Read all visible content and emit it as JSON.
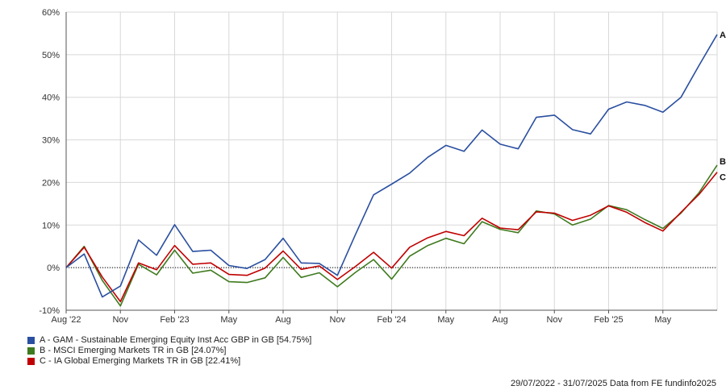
{
  "chart_data": {
    "type": "line",
    "ylim": [
      -10,
      60
    ],
    "y_ticks": [
      "-10%",
      "0%",
      "10%",
      "20%",
      "30%",
      "40%",
      "50%",
      "60%"
    ],
    "x_tick_labels": [
      "Aug '22",
      "Nov",
      "Feb '23",
      "May",
      "Aug",
      "Nov",
      "Feb '24",
      "May",
      "Aug",
      "Nov",
      "Feb '25",
      "May"
    ],
    "x_tick_index": [
      0,
      6,
      12,
      18,
      24,
      30,
      36,
      42,
      48,
      54,
      60,
      66
    ],
    "x_count": 73,
    "grid": true,
    "zero_line": "dotted",
    "series": [
      {
        "name": "A - GAM - Sustainable Emerging Equity Inst Acc GBP in GB [54.75%]",
        "end_label": "A",
        "color": "#2a4fa0",
        "values": [
          0,
          3.2,
          -6.9,
          -4.3,
          6.5,
          2.9,
          10.1,
          3.8,
          4.1,
          0.5,
          -0.2,
          1.9,
          6.9,
          1.1,
          1.0,
          -1.8,
          7.8,
          17.1,
          19.6,
          22.2,
          25.9,
          28.7,
          27.3,
          32.3,
          29.0,
          27.9,
          35.3,
          35.8,
          32.4,
          31.4,
          37.2,
          38.9,
          38.1,
          36.5,
          40.0,
          47.5,
          54.75
        ],
        "x_index": [
          0,
          2,
          4,
          6,
          8,
          10,
          12,
          14,
          16,
          18,
          20,
          22,
          24,
          26,
          28,
          30,
          32,
          34,
          36,
          38,
          40,
          42,
          44,
          46,
          48,
          50,
          52,
          54,
          56,
          58,
          60,
          62,
          64,
          66,
          68,
          70,
          72
        ]
      },
      {
        "name": "B - MSCI Emerging Markets TR in GB [24.07%]",
        "end_label": "B",
        "color": "#3f7a1e",
        "values": [
          0,
          5.0,
          -3.0,
          -9.0,
          0.8,
          -1.7,
          4.1,
          -1.3,
          -0.6,
          -3.3,
          -3.5,
          -2.4,
          2.4,
          -2.3,
          -1.2,
          -4.5,
          -1.1,
          1.9,
          -2.7,
          2.7,
          5.2,
          6.9,
          5.6,
          10.8,
          9.0,
          8.2,
          13.3,
          12.6,
          10.0,
          11.4,
          14.6,
          13.6,
          11.3,
          9.2,
          12.8,
          17.6,
          24.07
        ],
        "x_index": [
          0,
          2,
          4,
          6,
          8,
          10,
          12,
          14,
          16,
          18,
          20,
          22,
          24,
          26,
          28,
          30,
          32,
          34,
          36,
          38,
          40,
          42,
          44,
          46,
          48,
          50,
          52,
          54,
          56,
          58,
          60,
          62,
          64,
          66,
          68,
          70,
          72
        ]
      },
      {
        "name": "C - IA Global Emerging Markets TR in GB [22.41%]",
        "end_label": "C",
        "color": "#c00000",
        "values": [
          0,
          4.8,
          -2.2,
          -8.0,
          1.1,
          -0.5,
          5.2,
          0.8,
          1.1,
          -1.6,
          -1.8,
          -0.1,
          3.9,
          -0.4,
          0.4,
          -2.8,
          0.3,
          3.6,
          -0.1,
          4.8,
          7.0,
          8.5,
          7.5,
          11.6,
          9.3,
          8.9,
          13.1,
          12.8,
          11.1,
          12.3,
          14.5,
          13.0,
          10.6,
          8.6,
          13.0,
          17.2,
          22.41
        ],
        "x_index": [
          0,
          2,
          4,
          6,
          8,
          10,
          12,
          14,
          16,
          18,
          20,
          22,
          24,
          26,
          28,
          30,
          32,
          34,
          36,
          38,
          40,
          42,
          44,
          46,
          48,
          50,
          52,
          54,
          56,
          58,
          60,
          62,
          64,
          66,
          68,
          70,
          72
        ]
      }
    ]
  },
  "footer": "29/07/2022 - 31/07/2025 Data from FE fundinfo2025"
}
